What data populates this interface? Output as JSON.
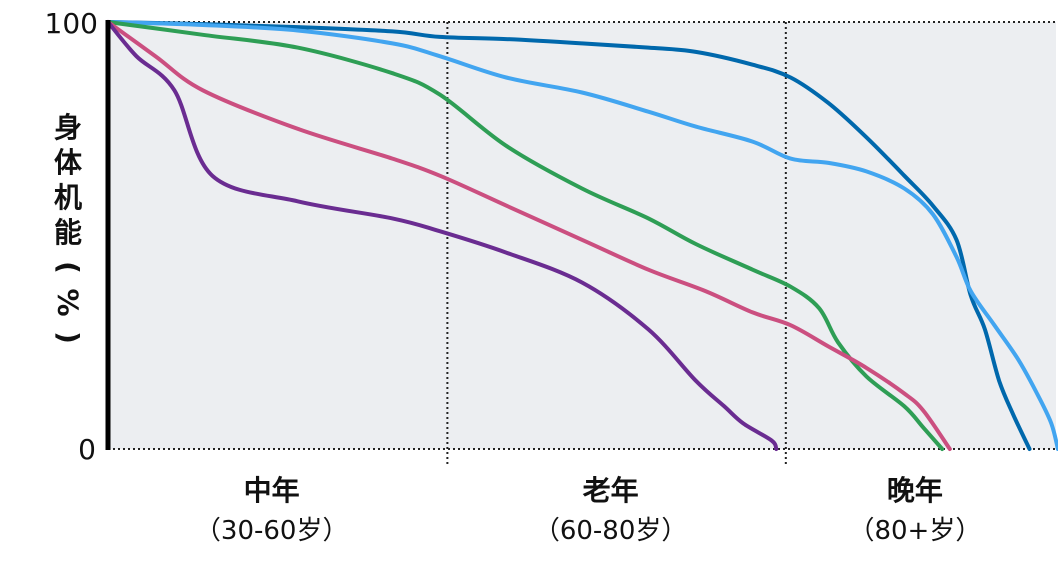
{
  "chart_data": {
    "type": "line",
    "title": "",
    "ylabel": "身体机能（%）",
    "xlabel": "",
    "ylim": [
      0,
      100
    ],
    "xlim": [
      0,
      100
    ],
    "yticks": [
      "100",
      "0"
    ],
    "grid": true,
    "stages": [
      {
        "name": "中年",
        "range": "（30-60岁）"
      },
      {
        "name": "老年",
        "range": "（60-80岁）"
      },
      {
        "name": "晚年",
        "range": "（80+岁）"
      }
    ],
    "stage_boundaries": [
      35.8,
      71.5
    ],
    "series": [
      {
        "color": "#0068ac",
        "x": [
          0,
          10,
          20,
          30,
          35,
          42,
          50,
          57,
          62,
          68,
          72,
          76,
          80,
          84,
          87,
          89.5,
          91,
          92.5,
          94,
          95.5,
          97.2
        ],
        "y": [
          100,
          99.5,
          98.8,
          97.8,
          96.5,
          96,
          95,
          94,
          93,
          90,
          87,
          81,
          73,
          64,
          57,
          49,
          36,
          28,
          16,
          8,
          0
        ]
      },
      {
        "color": "#42a5f0",
        "x": [
          0,
          10,
          20,
          30,
          35,
          42,
          50,
          57,
          62,
          68,
          72,
          76,
          80,
          84,
          87,
          89.5,
          91,
          93.5,
          96,
          98,
          99.5,
          100.2
        ],
        "y": [
          100,
          99.3,
          98,
          95,
          92,
          87,
          83.5,
          79,
          75.5,
          72,
          68,
          67,
          65,
          61,
          55,
          45,
          37,
          29,
          21,
          13,
          6,
          0
        ]
      },
      {
        "color": "#2e9e55",
        "x": [
          0,
          10,
          20,
          30,
          35,
          42,
          50,
          57,
          62,
          68,
          72,
          75,
          77,
          80,
          84,
          86,
          88
        ],
        "y": [
          100,
          97,
          94,
          88,
          83,
          71,
          61,
          54,
          48,
          42,
          38,
          33,
          25,
          17,
          10,
          5,
          0
        ]
      },
      {
        "color": "#cb4f80",
        "x": [
          0,
          5,
          10,
          20,
          30,
          35,
          42,
          50,
          57,
          63,
          68,
          72,
          76,
          80,
          84,
          86,
          88.8
        ],
        "y": [
          100,
          92,
          84,
          75,
          68,
          64,
          57,
          49,
          42,
          37,
          32,
          29,
          24,
          19,
          13,
          9,
          0
        ]
      },
      {
        "color": "#6a2c91",
        "x": [
          0,
          3,
          7,
          11,
          20,
          30,
          35,
          42,
          50,
          57,
          62,
          65,
          67,
          70,
          70.5
        ],
        "y": [
          100,
          92,
          84,
          64,
          58,
          54,
          51,
          46,
          39,
          28,
          16,
          10,
          6,
          2,
          0
        ]
      }
    ]
  }
}
